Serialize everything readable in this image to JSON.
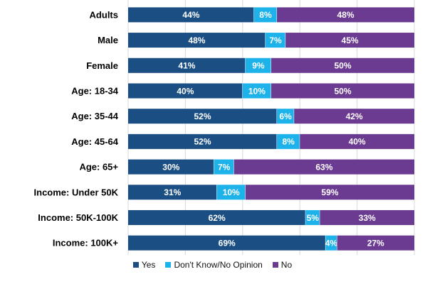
{
  "chart_data": {
    "type": "bar",
    "orientation": "horizontal",
    "stacked": true,
    "stack_total": 100,
    "categories": [
      "Adults",
      "Male",
      "Female",
      "Age: 18-34",
      "Age: 35-44",
      "Age: 45-64",
      "Age: 65+",
      "Income: Under 50K",
      "Income: 50K-100K",
      "Income: 100K+"
    ],
    "series": [
      {
        "name": "Yes",
        "color": "#1b4f84",
        "values": [
          44,
          48,
          41,
          40,
          52,
          52,
          30,
          31,
          62,
          69
        ],
        "labels": [
          "44%",
          "48%",
          "41%",
          "40%",
          "52%",
          "52%",
          "30%",
          "31%",
          "62%",
          "69%"
        ]
      },
      {
        "name": "Don't Know/No Opinion",
        "color": "#1eb2ea",
        "values": [
          8,
          7,
          9,
          10,
          6,
          8,
          7,
          10,
          5,
          4
        ],
        "labels": [
          "8%",
          "7%",
          "9%",
          "10%",
          "6%",
          "8%",
          "7%",
          "10%",
          "5%",
          "4%"
        ]
      },
      {
        "name": "No",
        "color": "#6b3a91",
        "values": [
          48,
          45,
          50,
          50,
          42,
          40,
          63,
          59,
          33,
          27
        ],
        "labels": [
          "48%",
          "45%",
          "50%",
          "50%",
          "42%",
          "40%",
          "63%",
          "59%",
          "33%",
          "27%"
        ]
      }
    ],
    "grid": "vertical",
    "legend_position": "bottom"
  }
}
